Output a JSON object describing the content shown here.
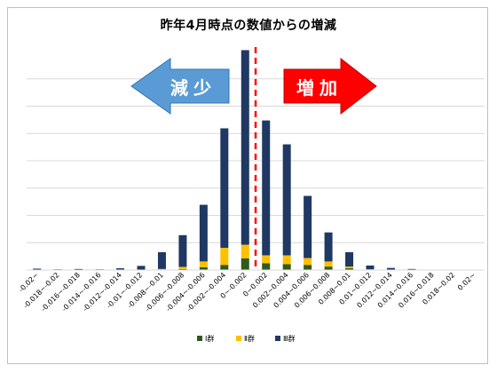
{
  "chart_data": {
    "type": "bar",
    "stacked": true,
    "title": "昨年4月時点の数値からの増減",
    "categories": [
      "-0.02~",
      "-0.018~-0.02",
      "-0.016~-0.018",
      "-0.014~-0.016",
      "-0.012~-0.014",
      "-0.01~-0.012",
      "-0.008~-0.01",
      "-0.006~-0.008",
      "-0.004~-0.006",
      "-0.002~-0.004",
      "0~-0.002",
      "0~0.002",
      "0.002~0.004",
      "0.004~0.006",
      "0.006~0.008",
      "0.008~0.01",
      "0.01~0.012",
      "0.012~0.014",
      "0.014~0.016",
      "0.016~0.018",
      "0.018~0.02",
      "0.02~"
    ],
    "series": [
      {
        "name": "Ⅰ群",
        "color": "#2e5a1c",
        "values": [
          0,
          0,
          0,
          0,
          0,
          0,
          1,
          3,
          8,
          15,
          34,
          20,
          17,
          15,
          10,
          5,
          1,
          0,
          0,
          0,
          0,
          0
        ]
      },
      {
        "name": "Ⅱ群",
        "color": "#ffc000",
        "values": [
          0,
          0,
          0,
          0,
          0,
          1,
          2,
          6,
          17,
          50,
          40,
          23,
          26,
          20,
          15,
          5,
          1,
          0,
          0,
          0,
          0,
          0
        ]
      },
      {
        "name": "Ⅲ群",
        "color": "#1f3864",
        "values": [
          4,
          2,
          3,
          2,
          5,
          11,
          49,
          93,
          166,
          350,
          570,
          395,
          325,
          182,
          85,
          42,
          11,
          6,
          3,
          1,
          1,
          0
        ]
      }
    ],
    "ylim": [
      0,
      640
    ],
    "grid": true,
    "legend": "bottom",
    "annotations": {
      "decrease_label": "減少",
      "increase_label": "増加",
      "zero_line": "dashed red"
    }
  }
}
